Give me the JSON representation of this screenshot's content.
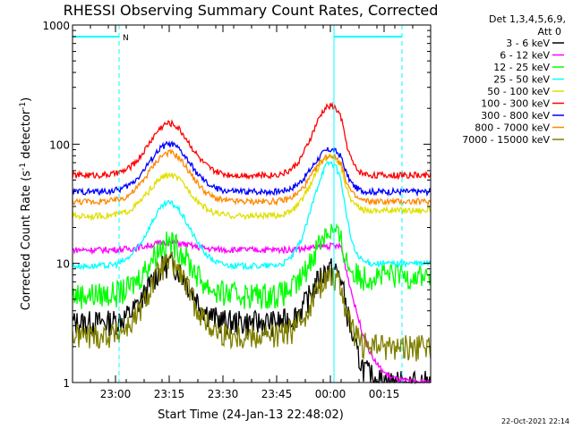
{
  "chart_data": {
    "type": "line",
    "title": "RHESSI Observing Summary Count Rates, Corrected",
    "xlabel": "Start Time (24-Jan-13 22:48:02)",
    "ylabel_main": "Corrected Count Rate (s",
    "ylabel_sup1": "-1",
    "ylabel_mid": " detector",
    "ylabel_sup2": "-1",
    "ylabel_end": ")",
    "yscale": "log",
    "ylim": [
      1,
      1000
    ],
    "xlim_minutes": [
      0,
      100
    ],
    "x_tick_labels": [
      {
        "label": "23:00",
        "minute": 12
      },
      {
        "label": "23:15",
        "minute": 27
      },
      {
        "label": "23:30",
        "minute": 42
      },
      {
        "label": "23:45",
        "minute": 57
      },
      {
        "label": "00:00",
        "minute": 72
      },
      {
        "label": "00:15",
        "minute": 87
      }
    ],
    "y_tick_labels": [
      {
        "label": "1",
        "value": 1
      },
      {
        "label": "10",
        "value": 10
      },
      {
        "label": "100",
        "value": 100
      },
      {
        "label": "1000",
        "value": 1000
      }
    ],
    "legend_header": [
      "Det 1,3,4,5,6,9,",
      "Att 0"
    ],
    "legend_position": "right",
    "series": [
      {
        "name": "3 - 6 keV",
        "color": "#000000",
        "base": 3.2,
        "peak1": 10,
        "peak2": 9,
        "drop": 1
      },
      {
        "name": "6 - 12 keV",
        "color": "#ff00ff",
        "base": 13,
        "peak1": 15,
        "peak2": 14,
        "drop": 1
      },
      {
        "name": "12 - 25 keV",
        "color": "#00ff00",
        "base": 5.5,
        "peak1": 15,
        "peak2": 19,
        "drop": 8
      },
      {
        "name": "25 - 50 keV",
        "color": "#00ffff",
        "base": 9.5,
        "peak1": 32,
        "peak2": 70,
        "drop": 10
      },
      {
        "name": "50 - 100 keV",
        "color": "#e0e000",
        "base": 25,
        "peak1": 55,
        "peak2": 80,
        "drop": 28
      },
      {
        "name": "100 - 300 keV",
        "color": "#ff0000",
        "base": 55,
        "peak1": 150,
        "peak2": 210,
        "drop": 55
      },
      {
        "name": "300 - 800 keV",
        "color": "#0000ff",
        "base": 40,
        "peak1": 100,
        "peak2": 90,
        "drop": 40
      },
      {
        "name": "800 - 7000 keV",
        "color": "#ff8800",
        "base": 33,
        "peak1": 85,
        "peak2": 80,
        "drop": 33
      },
      {
        "name": "7000 - 15000 keV",
        "color": "#808000",
        "base": 2.5,
        "peak1": 10,
        "peak2": 8,
        "drop": 2
      }
    ],
    "flag_labels": [
      "N"
    ],
    "spans": [
      {
        "start_minute": 0,
        "end_minute": 13,
        "label": "N",
        "color": "#00ffff"
      },
      {
        "start_minute": 73,
        "end_minute": 92,
        "label": "",
        "color": "#00ffff"
      }
    ],
    "dashed_markers_minute": [
      13,
      92
    ],
    "solid_marker_minute": 73,
    "timestamp": "22-Oct-2021 22:14"
  }
}
